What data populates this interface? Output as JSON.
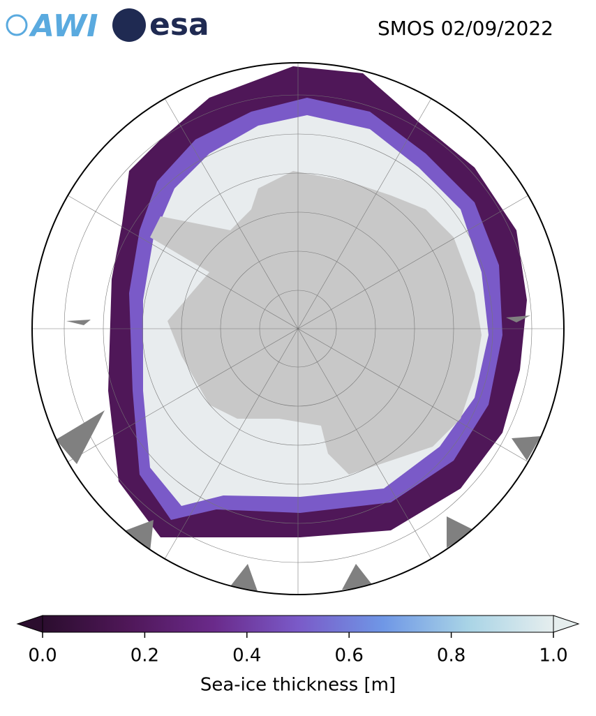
{
  "header": {
    "logos": [
      "AWI",
      "esa"
    ],
    "title": "SMOS 02/09/2022"
  },
  "colorbar": {
    "label": "Sea-ice thickness [m]",
    "range": [
      0,
      1
    ],
    "ticks": [
      {
        "value": 0,
        "label": "0.0"
      },
      {
        "value": 0.2,
        "label": "0.2"
      },
      {
        "value": 0.4,
        "label": "0.4"
      },
      {
        "value": 0.6,
        "label": "0.6"
      },
      {
        "value": 0.8,
        "label": "0.8"
      },
      {
        "value": 1,
        "label": "1.0"
      }
    ],
    "colors": [
      "#2b0d2e",
      "#4f1758",
      "#6a2a8a",
      "#7a5ac8",
      "#6f97e6",
      "#a9d4e6",
      "#e6eeee"
    ]
  }
}
